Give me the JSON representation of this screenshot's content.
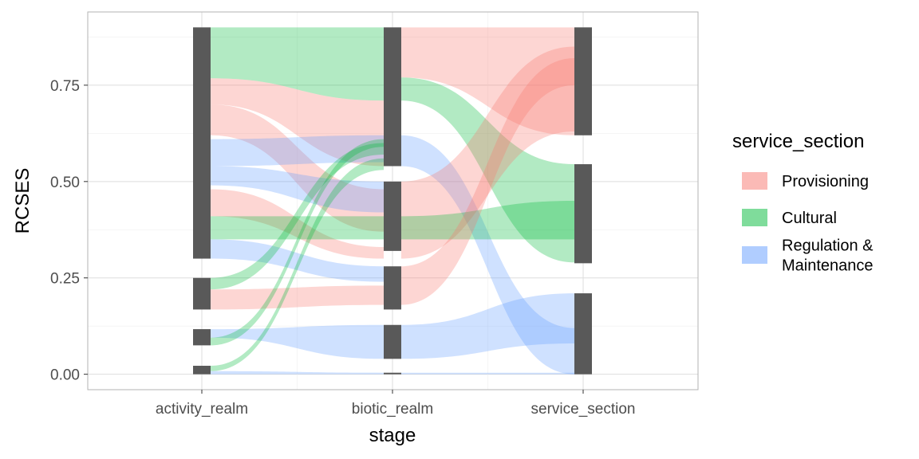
{
  "chart_data": {
    "type": "alluvial",
    "xlabel": "stage",
    "ylabel": "RCSES",
    "x_categories": [
      "activity_realm",
      "biotic_realm",
      "service_section"
    ],
    "y_ticks": [
      "0.00",
      "0.25",
      "0.50",
      "0.75"
    ],
    "ylim": [
      -0.04,
      0.94
    ],
    "grid": true,
    "legend": {
      "title": "service_section",
      "placement": "right",
      "entries": [
        {
          "label_lines": [
            "Provisioning"
          ],
          "color": "#F8766D"
        },
        {
          "label_lines": [
            "Cultural"
          ],
          "color": "#00BA38"
        },
        {
          "label_lines": [
            "Regulation &",
            "Maintenance"
          ],
          "color": "#619CFF"
        }
      ]
    },
    "stratum_color": "#595959",
    "strata": [
      {
        "stage": 0,
        "ymin": 0.3,
        "ymax": 0.9
      },
      {
        "stage": 0,
        "ymin": 0.168,
        "ymax": 0.25
      },
      {
        "stage": 0,
        "ymin": 0.075,
        "ymax": 0.117
      },
      {
        "stage": 0,
        "ymin": 0.0,
        "ymax": 0.022
      },
      {
        "stage": 1,
        "ymin": 0.54,
        "ymax": 0.9
      },
      {
        "stage": 1,
        "ymin": 0.32,
        "ymax": 0.5
      },
      {
        "stage": 1,
        "ymin": 0.168,
        "ymax": 0.28
      },
      {
        "stage": 1,
        "ymin": 0.04,
        "ymax": 0.128
      },
      {
        "stage": 1,
        "ymin": 0.0,
        "ymax": 0.004
      },
      {
        "stage": 2,
        "ymin": 0.62,
        "ymax": 0.9
      },
      {
        "stage": 2,
        "ymin": 0.288,
        "ymax": 0.545
      },
      {
        "stage": 2,
        "ymin": 0.0,
        "ymax": 0.21
      }
    ],
    "flows": [
      {
        "section": "Cultural",
        "from": [
          0.768,
          0.9
        ],
        "to": [
          0.71,
          0.9
        ]
      },
      {
        "section": "Provisioning",
        "from": [
          0.7,
          0.768
        ],
        "to": [
          0.54,
          0.71
        ]
      },
      {
        "section": "Provisioning",
        "from": [
          0.62,
          0.7
        ],
        "to": [
          0.37,
          0.48
        ]
      },
      {
        "section": "Regulation & Maintenance",
        "from": [
          0.54,
          0.61
        ],
        "to": [
          0.55,
          0.62
        ]
      },
      {
        "section": "Regulation & Maintenance",
        "from": [
          0.49,
          0.54
        ],
        "to": [
          0.42,
          0.5
        ]
      },
      {
        "section": "Provisioning",
        "from": [
          0.41,
          0.48
        ],
        "to": [
          0.3,
          0.33
        ]
      },
      {
        "section": "Cultural",
        "from": [
          0.35,
          0.41
        ],
        "to": [
          0.35,
          0.41
        ]
      },
      {
        "section": "Regulation & Maintenance",
        "from": [
          0.3,
          0.35
        ],
        "to": [
          0.24,
          0.28
        ]
      },
      {
        "section": "Cultural",
        "from": [
          0.22,
          0.25
        ],
        "to": [
          0.57,
          0.6
        ]
      },
      {
        "section": "Provisioning",
        "from": [
          0.168,
          0.22
        ],
        "to": [
          0.18,
          0.23
        ]
      },
      {
        "section": "Regulation & Maintenance",
        "from": [
          0.095,
          0.117
        ],
        "to": [
          0.04,
          0.128
        ]
      },
      {
        "section": "Cultural",
        "from": [
          0.075,
          0.095
        ],
        "to": [
          0.59,
          0.61
        ]
      },
      {
        "section": "Cultural",
        "from": [
          0.008,
          0.022
        ],
        "to": [
          0.53,
          0.56
        ]
      },
      {
        "section": "Regulation & Maintenance",
        "from": [
          0.0,
          0.008
        ],
        "to": [
          0.0,
          0.004
        ]
      },
      {
        "section": "Provisioning",
        "from": [
          0.77,
          0.9
        ],
        "to": [
          0.62,
          0.9
        ]
      },
      {
        "section": "Cultural",
        "from": [
          0.71,
          0.77
        ],
        "to": [
          0.29,
          0.545
        ]
      },
      {
        "section": "Regulation & Maintenance",
        "from": [
          0.54,
          0.62
        ],
        "to": [
          0.0,
          0.12
        ]
      },
      {
        "section": "Provisioning",
        "from": [
          0.3,
          0.5
        ],
        "to": [
          0.63,
          0.85
        ]
      },
      {
        "section": "Cultural",
        "from": [
          0.35,
          0.41
        ],
        "to": [
          0.35,
          0.45
        ]
      },
      {
        "section": "Provisioning",
        "from": [
          0.18,
          0.28
        ],
        "to": [
          0.75,
          0.82
        ]
      },
      {
        "section": "Regulation & Maintenance",
        "from": [
          0.04,
          0.128
        ],
        "to": [
          0.08,
          0.21
        ]
      },
      {
        "section": "Regulation & Maintenance",
        "from": [
          0.0,
          0.004
        ],
        "to": [
          0.0,
          0.004
        ]
      }
    ]
  }
}
